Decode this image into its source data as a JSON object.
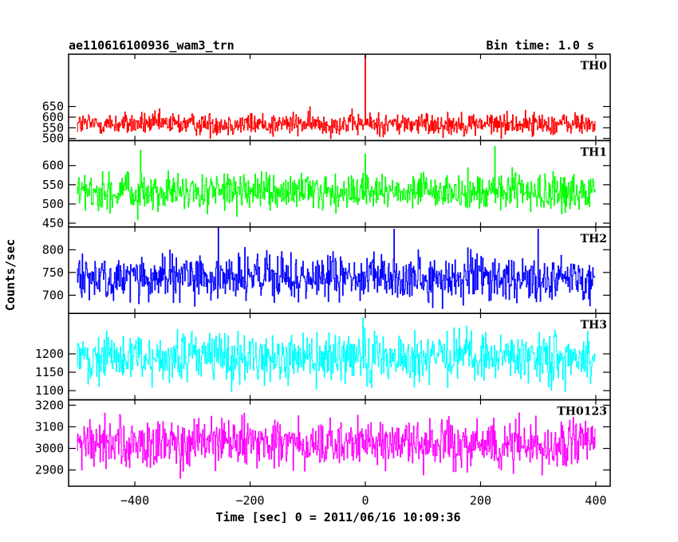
{
  "header": {
    "left_title": "ae110616100936_wam3_trn",
    "right_title": "Bin time: 1.0 s"
  },
  "chart_data": {
    "type": "line",
    "xlabel": "Time [sec] 0 = 2011/06/16 10:09:36",
    "ylabel": "Counts/sec",
    "xlim": [
      -515,
      425
    ],
    "x_range": [
      -500,
      399
    ],
    "x_step": 1,
    "x_ticks": [
      -400,
      -200,
      0,
      200,
      400
    ],
    "x_tick_labels": [
      "−400",
      "−200",
      "0",
      "200",
      "400"
    ],
    "panels": [
      {
        "label": "TH0",
        "color": "#ff0000",
        "ylim": [
          490,
          895
        ],
        "y_ticks": [
          500,
          550,
          600,
          650
        ],
        "mean": 568,
        "sigma": 26,
        "spikes": [
          [
            0,
            892
          ],
          [
            -160,
            510
          ]
        ]
      },
      {
        "label": "TH1",
        "color": "#00ff00",
        "ylim": [
          440,
          665
        ],
        "y_ticks": [
          450,
          500,
          550,
          600
        ],
        "mean": 530,
        "sigma": 23,
        "spikes": [
          [
            225,
            650
          ],
          [
            -390,
            640
          ],
          [
            0,
            630
          ]
        ]
      },
      {
        "label": "TH2",
        "color": "#0000ff",
        "ylim": [
          660,
          850
        ],
        "y_ticks": [
          700,
          750,
          800
        ],
        "mean": 738,
        "sigma": 25,
        "spikes": [
          [
            -255,
            848
          ],
          [
            300,
            845
          ],
          [
            50,
            845
          ]
        ]
      },
      {
        "label": "TH3",
        "color": "#00ffff",
        "ylim": [
          1075,
          1310
        ],
        "y_ticks": [
          1100,
          1150,
          1200
        ],
        "mean": 1190,
        "sigma": 34,
        "spikes": []
      },
      {
        "label": "TH0123",
        "color": "#ff00ff",
        "ylim": [
          2825,
          3225
        ],
        "y_ticks": [
          2900,
          3000,
          3100,
          3200
        ],
        "mean": 3020,
        "sigma": 55,
        "spikes": []
      }
    ]
  }
}
